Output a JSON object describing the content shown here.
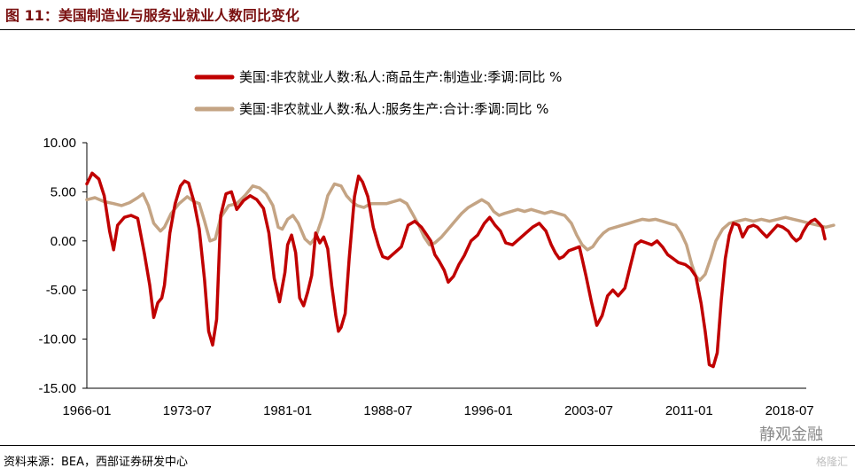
{
  "figure": {
    "title": "图 11：美国制造业与服务业就业人数同比变化",
    "source": "资料来源：BEA，西部证券研发中心",
    "watermark": "静观金融",
    "watermark2": "格隆汇"
  },
  "chart_data": {
    "type": "line",
    "title": "",
    "xlabel": "",
    "ylabel": "",
    "ylim": [
      -15,
      10
    ],
    "yticks": [
      10,
      5,
      0,
      -5,
      -10,
      -15
    ],
    "ytick_labels": [
      "10.00",
      "5.00",
      "0.00",
      "-5.00",
      "-10.00",
      "-15.00"
    ],
    "xlim": [
      1966.0,
      2019.75
    ],
    "xtick_labels": [
      "1966-01",
      "1973-07",
      "1981-01",
      "1988-07",
      "1996-01",
      "2003-07",
      "2011-01",
      "2018-07"
    ],
    "xticks": [
      1966.0,
      1973.5,
      1981.0,
      1988.5,
      1996.0,
      2003.5,
      2011.0,
      2018.5
    ],
    "grid": false,
    "legend_position": "top",
    "series": [
      {
        "name": "美国:非农就业人数:私人:商品生产:制造业:季调:同比 %",
        "color": "#c00000",
        "points": [
          [
            1966.0,
            5.8
          ],
          [
            1966.4,
            6.9
          ],
          [
            1966.9,
            6.3
          ],
          [
            1967.3,
            4.6
          ],
          [
            1967.7,
            1.0
          ],
          [
            1968.0,
            -0.9
          ],
          [
            1968.3,
            1.6
          ],
          [
            1968.8,
            2.4
          ],
          [
            1969.3,
            2.6
          ],
          [
            1969.8,
            2.3
          ],
          [
            1970.3,
            -1.3
          ],
          [
            1970.7,
            -4.5
          ],
          [
            1971.0,
            -7.8
          ],
          [
            1971.3,
            -6.3
          ],
          [
            1971.6,
            -5.8
          ],
          [
            1971.8,
            -4.5
          ],
          [
            1972.2,
            0.8
          ],
          [
            1972.6,
            3.8
          ],
          [
            1973.0,
            5.6
          ],
          [
            1973.3,
            6.1
          ],
          [
            1973.6,
            5.9
          ],
          [
            1974.0,
            4.0
          ],
          [
            1974.4,
            1.2
          ],
          [
            1974.8,
            -4.0
          ],
          [
            1975.1,
            -9.2
          ],
          [
            1975.4,
            -10.6
          ],
          [
            1975.7,
            -8.0
          ],
          [
            1976.0,
            2.6
          ],
          [
            1976.4,
            4.8
          ],
          [
            1976.8,
            5.0
          ],
          [
            1977.2,
            3.2
          ],
          [
            1977.7,
            4.1
          ],
          [
            1978.2,
            4.6
          ],
          [
            1978.7,
            4.2
          ],
          [
            1979.2,
            3.3
          ],
          [
            1979.6,
            0.8
          ],
          [
            1980.0,
            -3.8
          ],
          [
            1980.4,
            -6.2
          ],
          [
            1980.8,
            -3.2
          ],
          [
            1981.0,
            -0.4
          ],
          [
            1981.3,
            0.6
          ],
          [
            1981.6,
            -1.2
          ],
          [
            1981.9,
            -5.8
          ],
          [
            1982.2,
            -6.6
          ],
          [
            1982.5,
            -5.2
          ],
          [
            1982.8,
            -3.5
          ],
          [
            1983.1,
            0.8
          ],
          [
            1983.4,
            -0.2
          ],
          [
            1983.7,
            0.4
          ],
          [
            1984.0,
            -0.8
          ],
          [
            1984.3,
            -4.6
          ],
          [
            1984.6,
            -7.6
          ],
          [
            1984.8,
            -9.2
          ],
          [
            1985.0,
            -8.8
          ],
          [
            1985.3,
            -7.4
          ],
          [
            1985.6,
            -1.8
          ],
          [
            1986.0,
            4.5
          ],
          [
            1986.3,
            6.6
          ],
          [
            1986.6,
            6.0
          ],
          [
            1987.0,
            4.5
          ],
          [
            1987.4,
            1.4
          ],
          [
            1987.8,
            -0.5
          ],
          [
            1988.1,
            -1.6
          ],
          [
            1988.5,
            -1.8
          ],
          [
            1989.0,
            -1.2
          ],
          [
            1989.5,
            -0.6
          ],
          [
            1990.0,
            1.6
          ],
          [
            1990.5,
            2.0
          ],
          [
            1991.0,
            1.4
          ],
          [
            1991.3,
            0.8
          ],
          [
            1991.7,
            0.0
          ],
          [
            1992.0,
            -1.4
          ],
          [
            1992.3,
            -2.0
          ],
          [
            1992.7,
            -3.0
          ],
          [
            1993.0,
            -4.2
          ],
          [
            1993.4,
            -3.6
          ],
          [
            1993.8,
            -2.4
          ],
          [
            1994.2,
            -1.5
          ],
          [
            1994.7,
            0.0
          ],
          [
            1995.2,
            0.6
          ],
          [
            1995.7,
            1.8
          ],
          [
            1996.1,
            2.4
          ],
          [
            1996.5,
            1.6
          ],
          [
            1996.9,
            1.0
          ],
          [
            1997.3,
            -0.2
          ],
          [
            1997.8,
            -0.4
          ],
          [
            1998.3,
            0.2
          ],
          [
            1998.8,
            0.8
          ],
          [
            1999.3,
            1.4
          ],
          [
            1999.8,
            1.8
          ],
          [
            2000.3,
            1.0
          ],
          [
            2000.7,
            -0.4
          ],
          [
            2001.0,
            -1.2
          ],
          [
            2001.3,
            -1.8
          ],
          [
            2001.6,
            -1.6
          ],
          [
            2002.0,
            -1.0
          ],
          [
            2002.4,
            -0.8
          ],
          [
            2002.8,
            -0.6
          ],
          [
            2003.0,
            -1.8
          ],
          [
            2003.3,
            -3.6
          ],
          [
            2003.7,
            -6.2
          ],
          [
            2004.1,
            -8.6
          ],
          [
            2004.5,
            -7.6
          ],
          [
            2004.9,
            -5.6
          ],
          [
            2005.3,
            -5.0
          ],
          [
            2005.7,
            -5.6
          ],
          [
            2006.2,
            -4.8
          ],
          [
            2006.6,
            -2.6
          ],
          [
            2007.0,
            -0.4
          ],
          [
            2007.4,
            0.0
          ],
          [
            2007.8,
            -0.2
          ],
          [
            2008.2,
            -0.4
          ],
          [
            2008.6,
            0.0
          ],
          [
            2009.0,
            -0.6
          ],
          [
            2009.4,
            -1.4
          ],
          [
            2009.8,
            -1.8
          ],
          [
            2010.2,
            -2.2
          ],
          [
            2010.7,
            -2.4
          ],
          [
            2011.1,
            -2.8
          ],
          [
            2011.5,
            -3.6
          ],
          [
            2011.9,
            -6.4
          ],
          [
            2012.2,
            -9.2
          ],
          [
            2012.5,
            -12.6
          ],
          [
            2012.8,
            -12.8
          ],
          [
            2013.1,
            -11.4
          ],
          [
            2013.4,
            -6.0
          ],
          [
            2013.7,
            -1.8
          ],
          [
            2014.0,
            0.6
          ],
          [
            2014.3,
            1.8
          ],
          [
            2014.7,
            1.6
          ],
          [
            2015.0,
            0.4
          ],
          [
            2015.4,
            1.4
          ],
          [
            2015.8,
            1.6
          ],
          [
            2016.1,
            1.4
          ],
          [
            2016.5,
            0.8
          ],
          [
            2016.8,
            0.4
          ],
          [
            2017.2,
            1.0
          ],
          [
            2017.6,
            1.6
          ],
          [
            2018.0,
            1.4
          ],
          [
            2018.4,
            1.0
          ],
          [
            2018.7,
            0.4
          ],
          [
            2019.0,
            0.0
          ],
          [
            2019.3,
            0.3
          ],
          [
            2019.5,
            0.9
          ],
          [
            2019.8,
            1.6
          ],
          [
            2020.1,
            2.0
          ],
          [
            2020.4,
            2.2
          ],
          [
            2020.7,
            1.8
          ],
          [
            2020.95,
            1.4
          ],
          [
            2021.15,
            0.2
          ]
        ]
      },
      {
        "name": "美国:非农就业人数:私人:服务生产:合计:季调:同比 %",
        "color": "#c4a484",
        "points": [
          [
            1966.0,
            4.2
          ],
          [
            1966.6,
            4.4
          ],
          [
            1967.3,
            4.0
          ],
          [
            1968.0,
            3.8
          ],
          [
            1968.6,
            3.6
          ],
          [
            1969.2,
            3.9
          ],
          [
            1969.8,
            4.4
          ],
          [
            1970.2,
            4.8
          ],
          [
            1970.6,
            3.6
          ],
          [
            1971.0,
            1.8
          ],
          [
            1971.5,
            1.0
          ],
          [
            1971.8,
            1.4
          ],
          [
            1972.3,
            2.8
          ],
          [
            1972.9,
            3.8
          ],
          [
            1973.5,
            4.5
          ],
          [
            1974.0,
            4.0
          ],
          [
            1974.4,
            3.8
          ],
          [
            1974.8,
            2.0
          ],
          [
            1975.2,
            0.0
          ],
          [
            1975.6,
            0.2
          ],
          [
            1976.0,
            2.4
          ],
          [
            1976.6,
            3.6
          ],
          [
            1977.2,
            3.8
          ],
          [
            1977.8,
            4.6
          ],
          [
            1978.4,
            5.6
          ],
          [
            1978.9,
            5.4
          ],
          [
            1979.4,
            4.8
          ],
          [
            1979.9,
            3.6
          ],
          [
            1980.3,
            1.4
          ],
          [
            1980.6,
            1.2
          ],
          [
            1981.0,
            2.2
          ],
          [
            1981.4,
            2.6
          ],
          [
            1981.8,
            1.8
          ],
          [
            1982.3,
            0.2
          ],
          [
            1982.7,
            -0.3
          ],
          [
            1983.1,
            0.4
          ],
          [
            1983.6,
            2.4
          ],
          [
            1984.0,
            4.6
          ],
          [
            1984.5,
            5.8
          ],
          [
            1985.0,
            5.6
          ],
          [
            1985.4,
            4.6
          ],
          [
            1985.8,
            4.0
          ],
          [
            1986.2,
            3.6
          ],
          [
            1986.7,
            3.4
          ],
          [
            1987.2,
            3.8
          ],
          [
            1987.8,
            3.8
          ],
          [
            1988.4,
            3.8
          ],
          [
            1988.9,
            4.0
          ],
          [
            1989.4,
            4.2
          ],
          [
            1989.9,
            3.8
          ],
          [
            1990.4,
            2.6
          ],
          [
            1990.8,
            1.6
          ],
          [
            1991.2,
            0.4
          ],
          [
            1991.6,
            -0.4
          ],
          [
            1992.0,
            -0.2
          ],
          [
            1992.5,
            0.4
          ],
          [
            1993.0,
            1.2
          ],
          [
            1993.5,
            2.0
          ],
          [
            1994.0,
            2.8
          ],
          [
            1994.5,
            3.4
          ],
          [
            1995.0,
            3.8
          ],
          [
            1995.5,
            4.2
          ],
          [
            1996.0,
            3.8
          ],
          [
            1996.4,
            3.0
          ],
          [
            1996.8,
            2.6
          ],
          [
            1997.2,
            2.8
          ],
          [
            1997.7,
            3.0
          ],
          [
            1998.2,
            3.2
          ],
          [
            1998.7,
            3.0
          ],
          [
            1999.2,
            3.2
          ],
          [
            1999.7,
            3.0
          ],
          [
            2000.2,
            2.8
          ],
          [
            2000.7,
            3.0
          ],
          [
            2001.2,
            2.8
          ],
          [
            2001.7,
            2.6
          ],
          [
            2002.2,
            1.8
          ],
          [
            2002.6,
            0.6
          ],
          [
            2003.0,
            -0.4
          ],
          [
            2003.4,
            -0.9
          ],
          [
            2003.8,
            -0.6
          ],
          [
            2004.2,
            0.2
          ],
          [
            2004.6,
            0.8
          ],
          [
            2005.0,
            1.2
          ],
          [
            2005.5,
            1.4
          ],
          [
            2006.0,
            1.6
          ],
          [
            2006.5,
            1.8
          ],
          [
            2007.0,
            2.0
          ],
          [
            2007.5,
            2.2
          ],
          [
            2008.0,
            2.1
          ],
          [
            2008.5,
            2.2
          ],
          [
            2009.0,
            2.0
          ],
          [
            2009.5,
            1.8
          ],
          [
            2010.0,
            1.6
          ],
          [
            2010.4,
            0.8
          ],
          [
            2010.8,
            -0.4
          ],
          [
            2011.2,
            -2.4
          ],
          [
            2011.5,
            -3.6
          ],
          [
            2011.8,
            -4.0
          ],
          [
            2012.2,
            -3.4
          ],
          [
            2012.6,
            -1.8
          ],
          [
            2013.0,
            0.0
          ],
          [
            2013.5,
            1.2
          ],
          [
            2014.0,
            1.8
          ],
          [
            2014.6,
            2.0
          ],
          [
            2015.2,
            2.2
          ],
          [
            2015.8,
            2.0
          ],
          [
            2016.4,
            2.2
          ],
          [
            2017.0,
            2.0
          ],
          [
            2017.6,
            2.2
          ],
          [
            2018.2,
            2.4
          ],
          [
            2018.8,
            2.2
          ],
          [
            2019.4,
            2.0
          ],
          [
            2020.0,
            1.8
          ],
          [
            2020.6,
            1.6
          ],
          [
            2021.2,
            1.4
          ],
          [
            2021.8,
            1.6
          ]
        ]
      }
    ]
  }
}
